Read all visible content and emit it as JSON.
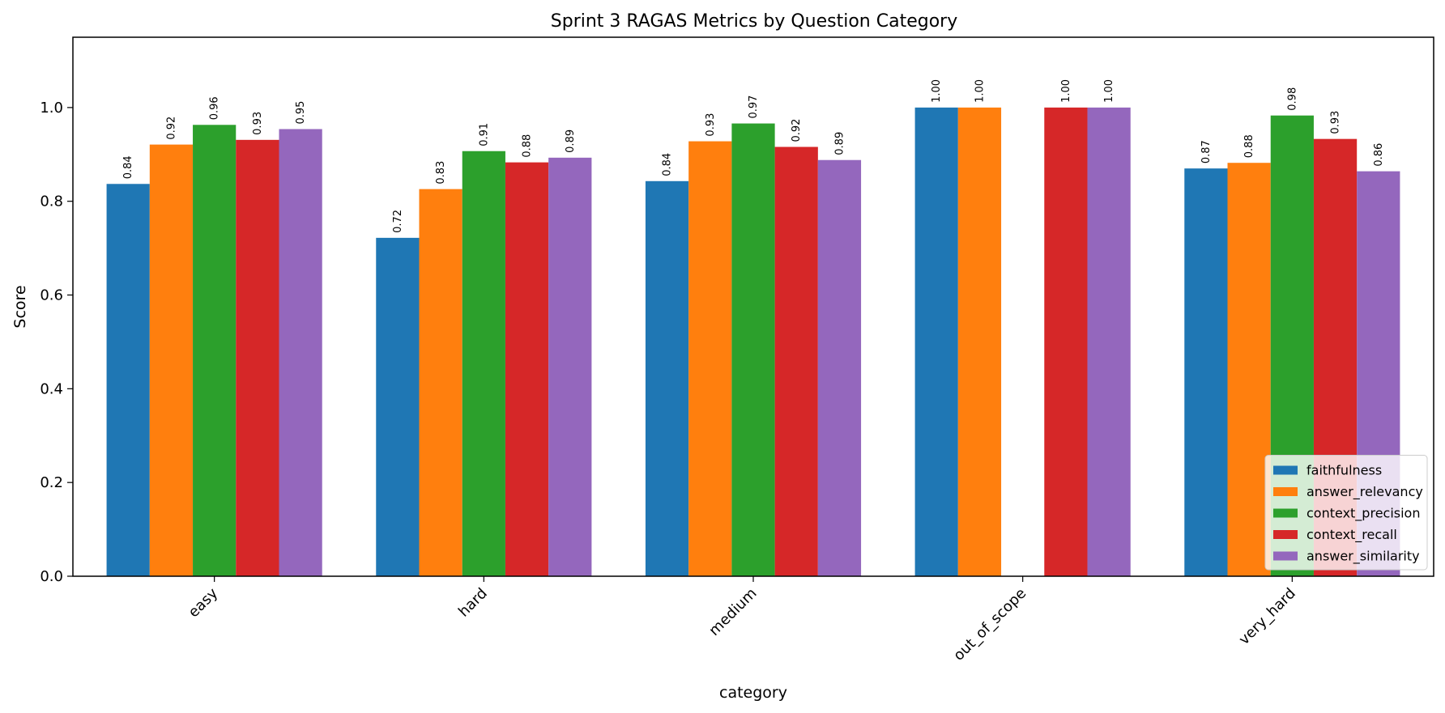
{
  "chart_data": {
    "type": "bar",
    "title": "Sprint 3 RAGAS Metrics by Question Category",
    "xlabel": "category",
    "ylabel": "Score",
    "ylim": [
      0,
      1.15
    ],
    "yticks": [
      "0.0",
      "0.2",
      "0.4",
      "0.6",
      "0.8",
      "1.0"
    ],
    "categories": [
      "easy",
      "hard",
      "medium",
      "out_of_scope",
      "very_hard"
    ],
    "grid": false,
    "legend_position": "lower-right",
    "series": [
      {
        "name": "faithfulness",
        "color": "#1f77b4",
        "values": [
          0.837,
          0.722,
          0.843,
          1.0,
          0.87
        ],
        "labels": [
          "0.84",
          "0.72",
          "0.84",
          "1.00",
          "0.87"
        ]
      },
      {
        "name": "answer_relevancy",
        "color": "#ff7f0e",
        "values": [
          0.921,
          0.826,
          0.928,
          1.0,
          0.882
        ],
        "labels": [
          "0.92",
          "0.83",
          "0.93",
          "1.00",
          "0.88"
        ]
      },
      {
        "name": "context_precision",
        "color": "#2ca02c",
        "values": [
          0.963,
          0.907,
          0.966,
          null,
          0.983
        ],
        "labels": [
          "0.96",
          "0.91",
          "0.97",
          null,
          "0.98"
        ]
      },
      {
        "name": "context_recall",
        "color": "#d62728",
        "values": [
          0.931,
          0.883,
          0.916,
          1.0,
          0.933
        ],
        "labels": [
          "0.93",
          "0.88",
          "0.92",
          "1.00",
          "0.93"
        ]
      },
      {
        "name": "answer_similarity",
        "color": "#9467bd",
        "values": [
          0.954,
          0.893,
          0.888,
          1.0,
          0.864
        ],
        "labels": [
          "0.95",
          "0.89",
          "0.89",
          "1.00",
          "0.86"
        ]
      }
    ]
  }
}
